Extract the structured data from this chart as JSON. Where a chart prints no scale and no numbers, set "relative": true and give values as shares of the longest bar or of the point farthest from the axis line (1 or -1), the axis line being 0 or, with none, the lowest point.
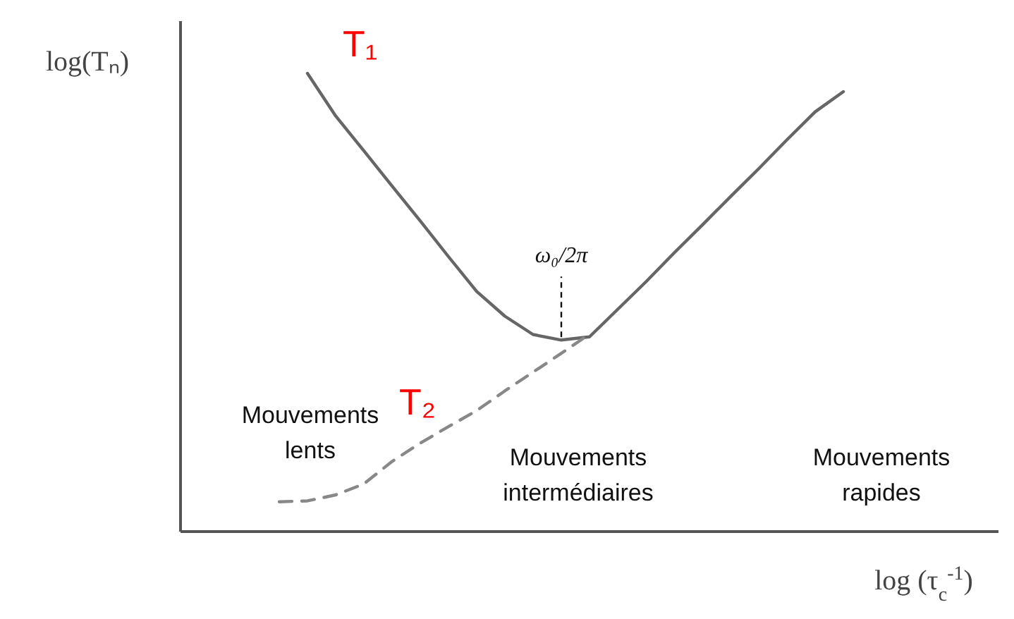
{
  "chart_data": {
    "type": "line",
    "relative": true,
    "ylabel": "log(Tₙ)",
    "xlabel": "log (τ$_{c}$$^{-1}$)",
    "marker": "none",
    "categories": [
      null,
      null,
      null,
      null,
      null,
      null,
      null,
      null,
      null,
      null,
      null,
      null,
      null,
      null,
      null,
      null,
      null,
      null,
      null,
      null,
      null,
      null,
      null,
      null,
      null,
      null,
      null,
      null,
      null
    ],
    "series": [
      {
        "name": "T₁",
        "color": "#666666",
        "line_style": "solid",
        "values": [
          null,
          null,
          null,
          null,
          1.0,
          0.907,
          0.831,
          0.754,
          0.678,
          0.6,
          0.524,
          0.47,
          0.43,
          0.418,
          0.425,
          0.485,
          0.545,
          0.608,
          0.669,
          0.731,
          0.792,
          0.855,
          0.916,
          0.96,
          null,
          null,
          null,
          null,
          null
        ]
      },
      {
        "name": "T₂",
        "color": "#888888",
        "line_style": "dashed",
        "values": [
          null,
          null,
          null,
          0.065,
          0.067,
          0.08,
          0.104,
          0.153,
          0.193,
          0.229,
          0.264,
          0.307,
          0.348,
          0.389,
          0.431,
          null,
          null,
          null,
          null,
          null,
          null,
          null,
          null,
          null,
          null,
          null,
          null,
          null,
          null
        ]
      }
    ],
    "annotations": [
      "ω₀/2π",
      "Mouvements\nlents",
      "Mouvements\nintermédiaires",
      "Mouvements\nrapides"
    ]
  }
}
